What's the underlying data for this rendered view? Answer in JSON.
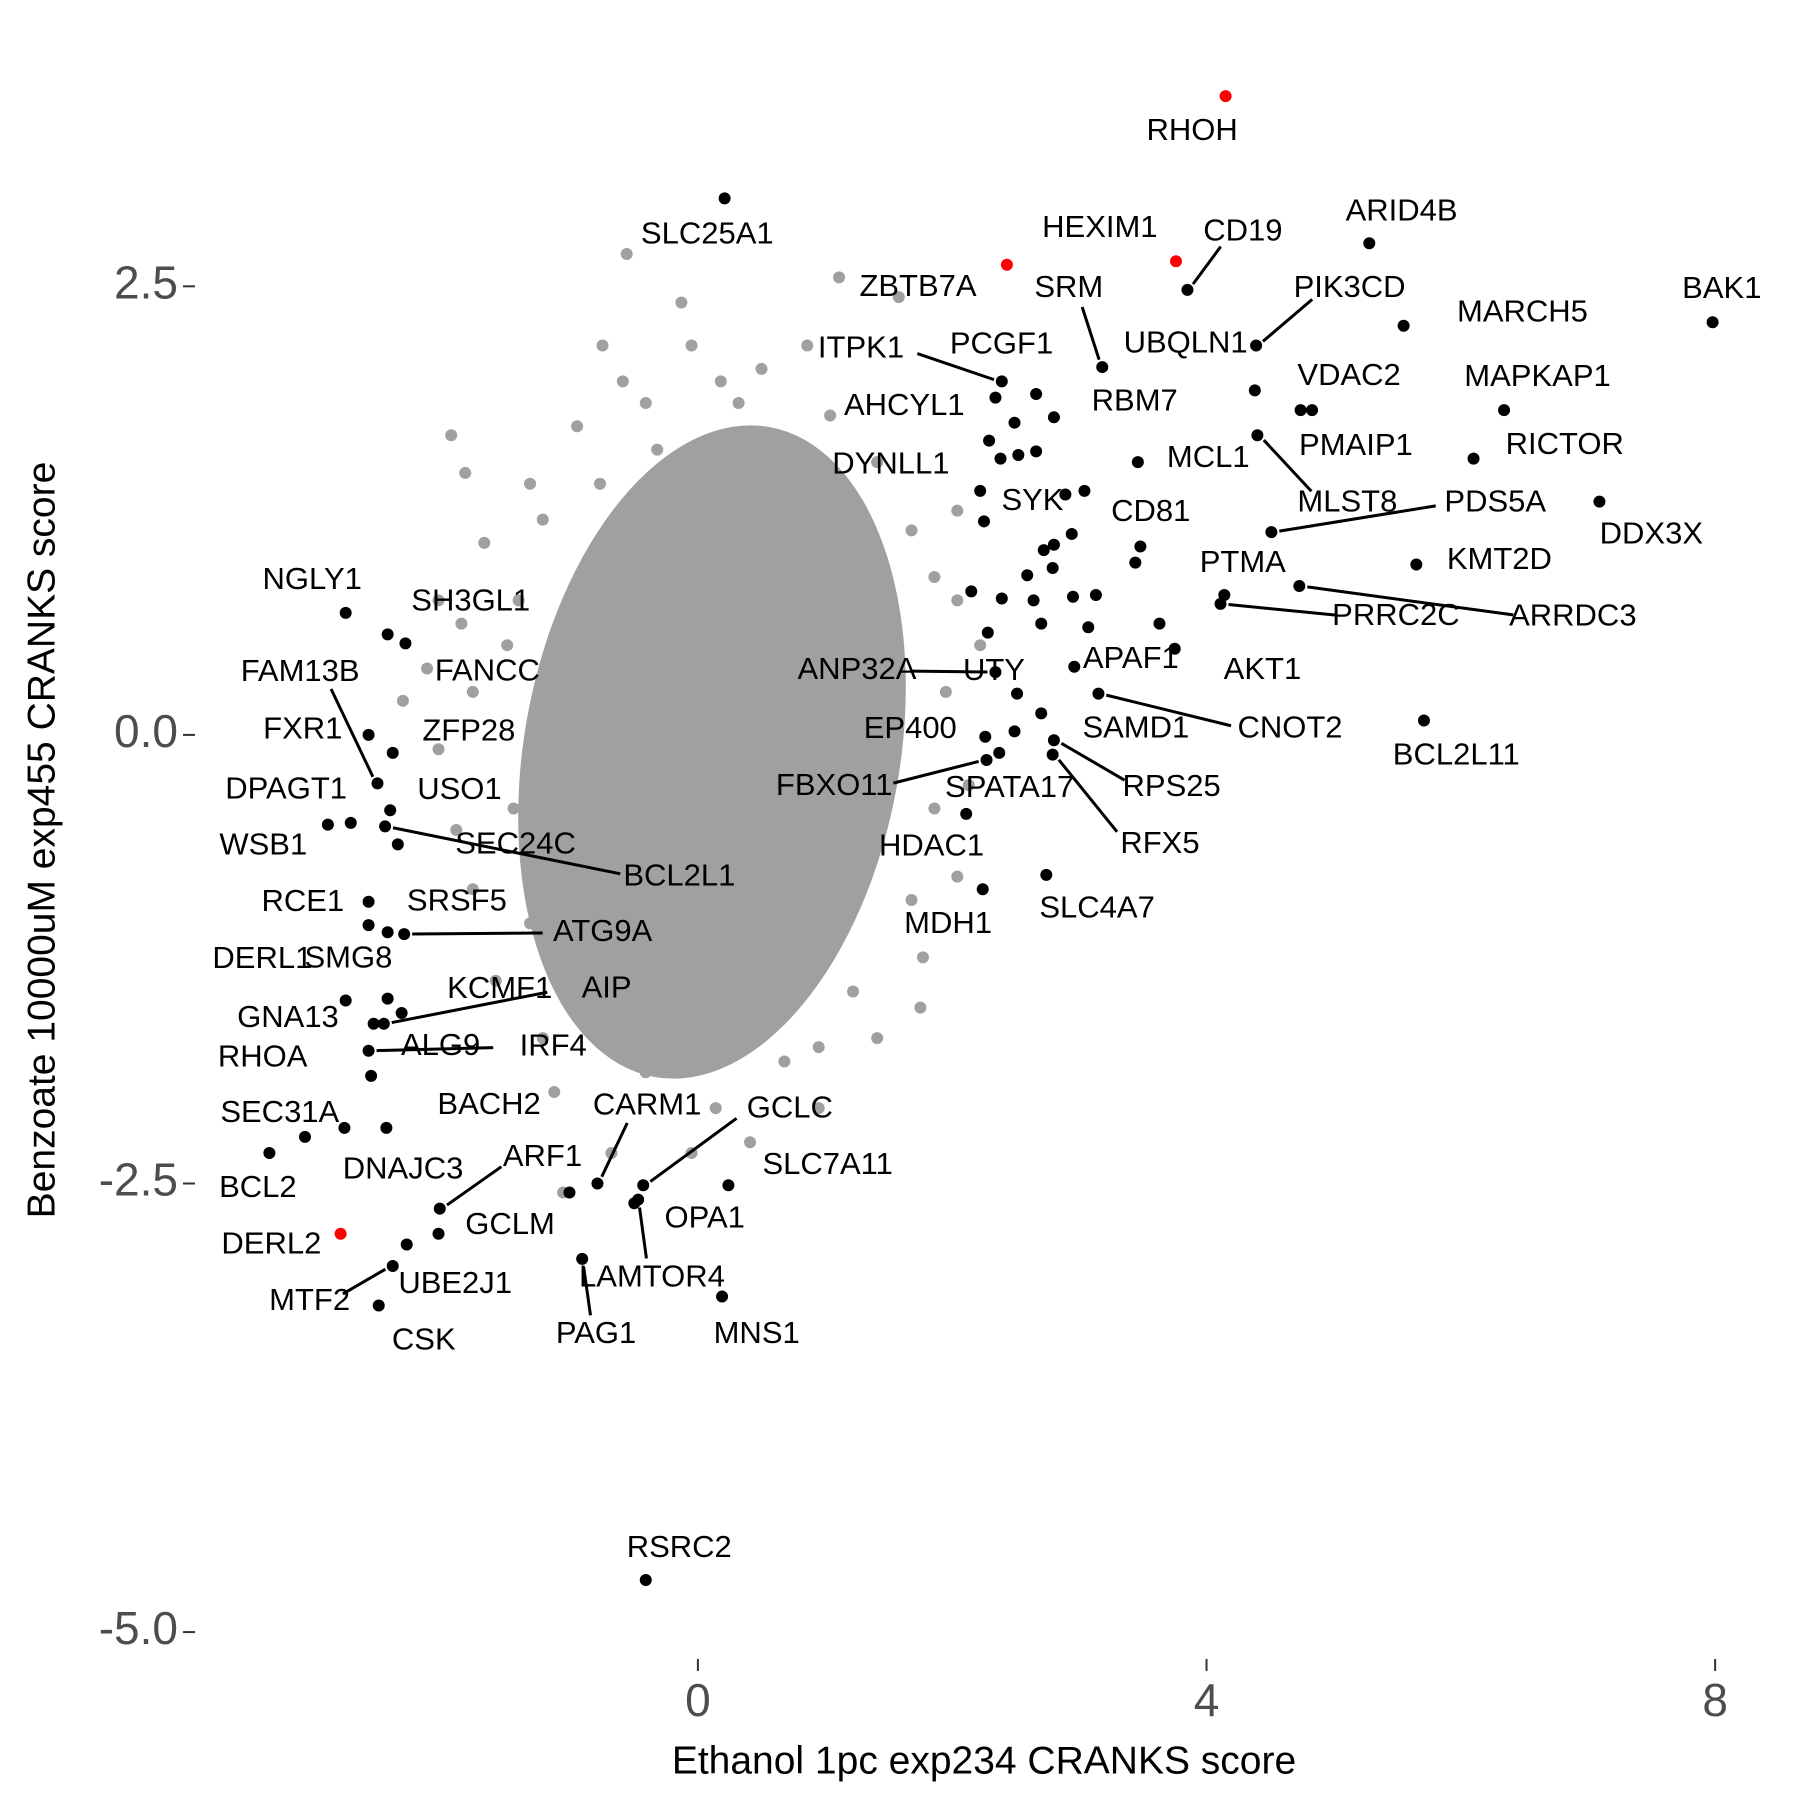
{
  "chart_data": {
    "type": "scatter",
    "x_label": "Ethanol 1pc exp234 CRANKS score",
    "y_label": "Benzoate 10000uM exp455 CRANKS score",
    "xlim": [
      -3.9,
      8.4
    ],
    "ylim": [
      -5.15,
      3.7
    ],
    "xticks": [
      0,
      4,
      8
    ],
    "yticks": [
      {
        "value": -5,
        "label": "-5.0"
      },
      -2.5,
      {
        "value": 0,
        "label": "0.0"
      },
      2.5
    ],
    "series": [
      {
        "color": "#a0a0a0",
        "x": [
          -0.56,
          1.11,
          -0.13,
          1.58,
          -0.75,
          -1.94,
          -1.83,
          -2.32,
          -2.04,
          1.75,
          0.95,
          -1.06,
          -1.13,
          2.04,
          0.86,
          0.18,
          -0.41,
          -1.32,
          -1.68,
          -1.5,
          -1.77,
          -1.45,
          -1.32,
          -0.95,
          -0.41,
          0.14,
          0.68,
          1.22,
          1.68,
          1.86,
          1.95,
          2.04,
          1.68,
          1.41,
          1.04,
          0.5,
          -0.05,
          -0.59,
          -0.95,
          -1.22,
          -1.41,
          -1.86,
          -2.04,
          -2.13,
          -1.9,
          -1.77,
          -1.59,
          -1.22,
          -0.68,
          -0.05,
          0.41,
          0.95,
          1.41,
          1.77,
          2.04,
          2.13,
          2.22,
          1.86,
          1.22,
          0.68,
          0.32,
          -0.32,
          -0.77
        ],
        "y": [
          2.68,
          2.55,
          2.41,
          2.44,
          2.17,
          1.67,
          1.46,
          0.19,
          -0.08,
          -1.52,
          -1.74,
          -2.55,
          -1.99,
          1.25,
          2.17,
          1.97,
          1.85,
          1.4,
          1.07,
          0.5,
          0.24,
          -0.41,
          -1.05,
          -1.56,
          -1.88,
          -2.08,
          -1.82,
          -1.43,
          -0.92,
          -0.41,
          0.24,
          0.75,
          1.14,
          1.52,
          1.78,
          2.04,
          2.17,
          1.97,
          1.72,
          1.2,
          0.75,
          0.62,
          0.75,
          0.37,
          -0.53,
          -0.86,
          -1.37,
          -1.69,
          -2.33,
          -2.33,
          -2.27,
          -2.08,
          -1.69,
          -1.24,
          -0.79,
          -0.28,
          0.5,
          0.88,
          1.2,
          1.65,
          1.85,
          1.59,
          1.4
        ]
      },
      {
        "color": "#000000",
        "x": [
          0.21,
          5.28,
          7.98,
          3.85,
          3.18,
          4.39,
          5.55,
          4.38,
          4.74,
          4.83,
          3.46,
          4.4,
          6.34,
          6.1,
          7.09,
          4.51,
          5.65,
          4.14,
          4.73,
          4.11,
          3.48,
          3.75,
          5.71,
          3.15,
          2.96,
          2.7,
          2.8,
          2.79,
          2.74,
          2.24,
          2.11,
          2.37,
          2.27,
          2.26,
          2.51,
          2.34,
          2.25,
          2.38,
          2.34,
          2.39,
          2.66,
          2.8,
          -2.77,
          -2.44,
          -2.3,
          -2.59,
          -2.52,
          -2.91,
          -2.73,
          -2.4,
          -2.42,
          -2.36,
          -2.46,
          -2.59,
          -2.59,
          -2.44,
          -2.31,
          -2.44,
          -2.33,
          -2.47,
          -2.77,
          -2.55,
          -2.59,
          -2.57,
          -2.78,
          -2.45,
          -3.37,
          -3.09,
          -0.79,
          -0.43,
          -2.03,
          0.24,
          -0.5,
          -2.04,
          -2.29,
          -2.4,
          -2.51,
          -0.47,
          -0.91,
          0.19,
          -0.41,
          2.66,
          2.52,
          2.49,
          2.29,
          2.89,
          3.04,
          2.8,
          2.72,
          2.94,
          2.79,
          2.59,
          2.64,
          2.95,
          3.13,
          3.07,
          2.7,
          2.39,
          2.28,
          2.15,
          3.63,
          2.49,
          -1.01,
          2.22,
          3.44
        ],
        "y": [
          2.99,
          2.74,
          2.3,
          2.48,
          2.05,
          2.17,
          2.28,
          1.92,
          1.81,
          1.81,
          1.52,
          1.67,
          1.81,
          1.54,
          1.3,
          1.13,
          0.95,
          0.78,
          0.83,
          0.73,
          1.05,
          0.48,
          0.08,
          0.23,
          0.38,
          0.12,
          -0.03,
          -0.11,
          -0.78,
          -0.86,
          -0.44,
          -0.1,
          -0.14,
          -0.01,
          0.23,
          0.35,
          1.19,
          1.54,
          1.88,
          1.97,
          1.9,
          1.77,
          0.68,
          0.56,
          0.51,
          0,
          -0.27,
          -0.5,
          -0.49,
          -0.1,
          -0.42,
          -0.61,
          -0.51,
          -0.93,
          -1.06,
          -1.1,
          -1.11,
          -1.47,
          -1.55,
          -1.61,
          -1.48,
          -1.61,
          -1.76,
          -1.9,
          -2.19,
          -2.19,
          -2.33,
          -2.24,
          -2.5,
          -2.51,
          -2.64,
          -2.51,
          -2.61,
          -2.78,
          -2.84,
          -2.96,
          -3.18,
          -2.59,
          -2.92,
          -3.13,
          -4.71,
          1.58,
          1.56,
          1.74,
          1.64,
          1.34,
          1.36,
          1.06,
          1.03,
          1.12,
          0.93,
          0.89,
          0.75,
          0.77,
          0.78,
          0.6,
          0.62,
          0.76,
          0.57,
          0.8,
          0.62,
          0.02,
          -2.55,
          1.36,
          0.96
        ],
        "labels": [
          "SLC25A1",
          "ARID4B",
          "BAK1",
          "CD19",
          "SRM",
          "PIK3CD",
          "MARCH5",
          "UBQLN1",
          "VDAC2",
          "PMAIP1",
          "MCL1",
          "MLST8",
          "MAPKAP1",
          "RICTOR",
          "DDX3X",
          "PDS5A",
          "KMT2D",
          "PTMA",
          "ARRDC3",
          "PRRC2C",
          "CD81",
          "AKT1",
          "BCL2L11",
          "CNOT2",
          "APAF1",
          "SAMD1",
          "RPS25",
          "RFX5",
          "SLC4A7",
          "MDH1",
          "HDAC1",
          "SPATA17",
          "FBXO11",
          "EP400",
          "UTY",
          "ANP32A",
          "SYK",
          "DYNLL1",
          "AHCYL1",
          "ITPK1",
          "PCGF1",
          "RBM7",
          "NGLY1",
          "SH3GL1",
          "FANCC",
          "FXR1",
          "FAM13B",
          "WSB1",
          "DPAGT1",
          "ZFP28",
          "USO1",
          "SEC24C",
          "BCL2L1",
          "RCE1",
          "DERL1",
          "SRSF5",
          "ATG9A",
          "SMG8",
          "KCMF1",
          "AIP",
          "GNA13",
          "ALG9",
          "IRF4",
          "RHOA",
          "SEC31A",
          "BACH2",
          "BCL2",
          "DNAJC3",
          "CARM1",
          "GCLC",
          "ARF1",
          "SLC7A11",
          "OPA1",
          "GCLM",
          "UBE2J1",
          "MTF2",
          "CSK",
          "LAMTOR4",
          "PAG1",
          "MNS1",
          "RSRC2",
          null,
          null,
          null,
          null,
          null,
          null,
          null,
          null,
          null,
          null,
          null,
          null,
          null,
          null,
          null,
          null,
          null,
          null,
          null,
          null,
          null,
          null,
          null,
          null
        ]
      },
      {
        "color": "#ff0000",
        "x": [
          4.15,
          3.76,
          2.43,
          -2.81
        ],
        "y": [
          3.56,
          2.64,
          2.62,
          -2.78
        ],
        "labels": [
          "RHOH",
          "HEXIM1",
          "ZBTB7A",
          "DERL2"
        ]
      }
    ]
  }
}
